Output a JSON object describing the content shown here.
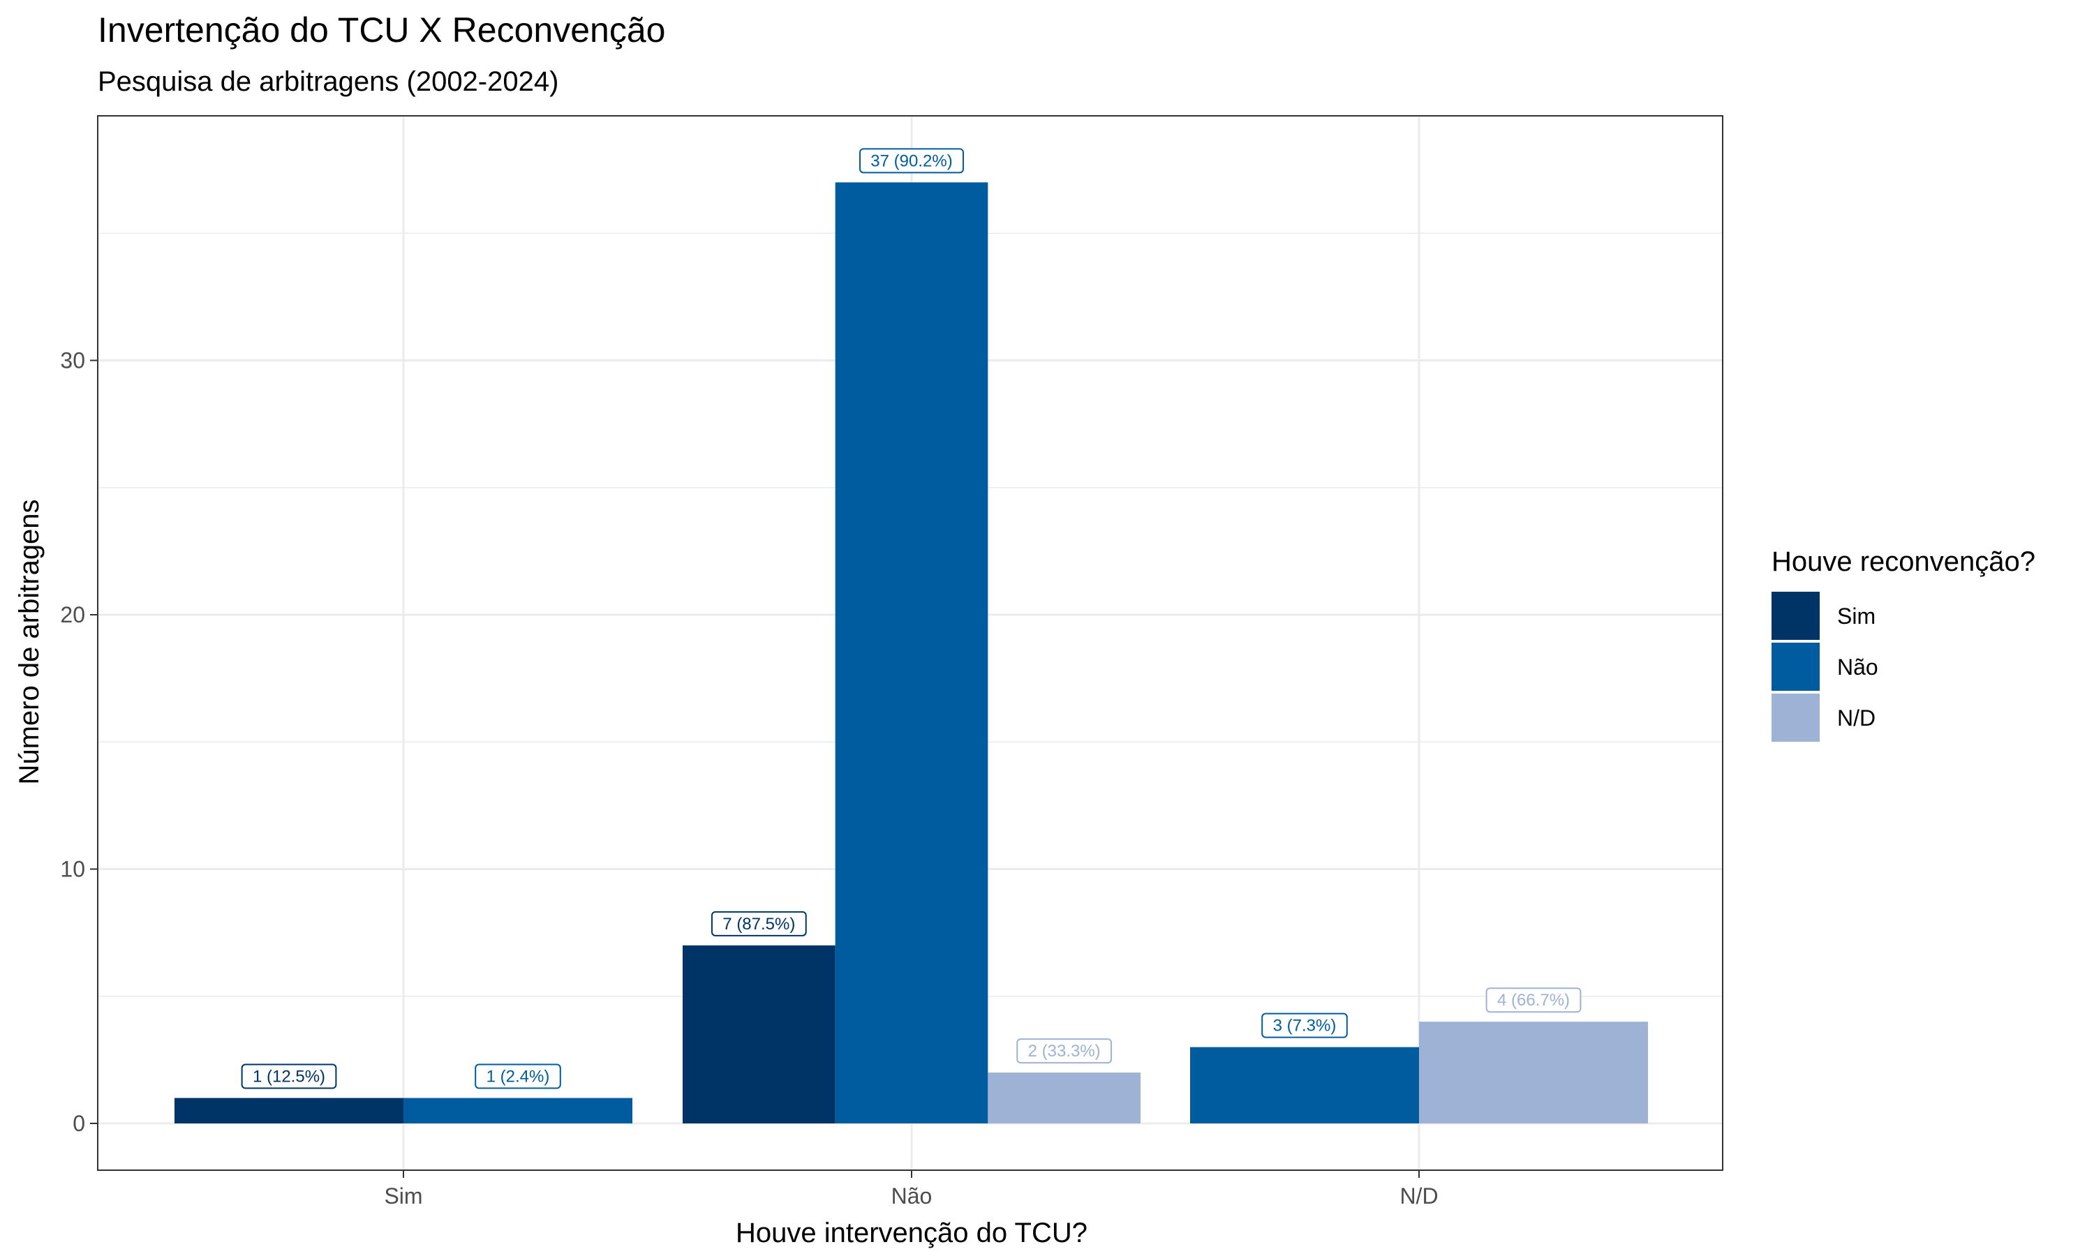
{
  "chart_data": {
    "type": "bar",
    "title": "Invertenção do TCU X Reconvenção",
    "subtitle": "Pesquisa de arbitragens (2002-2024)",
    "xlabel": "Houve intervenção do TCU?",
    "ylabel": "Número de arbitragens",
    "categories": [
      "Sim",
      "Não",
      "N/D"
    ],
    "ylim": [
      0,
      38
    ],
    "yticks": [
      0,
      10,
      20,
      30
    ],
    "grid": true,
    "legend": {
      "title": "Houve reconvenção?",
      "placement": "right",
      "entries": [
        "Sim",
        "Não",
        "N/D"
      ]
    },
    "colors": {
      "Sim": "#003366",
      "Não": "#005b9f",
      "N/D": "#9db2d5"
    },
    "groups": [
      {
        "category": "Sim",
        "bars": [
          {
            "series": "Sim",
            "value": 1,
            "label": "1 (12.5%)"
          },
          {
            "series": "Não",
            "value": 1,
            "label": "1 (2.4%)"
          }
        ]
      },
      {
        "category": "Não",
        "bars": [
          {
            "series": "Sim",
            "value": 7,
            "label": "7 (87.5%)"
          },
          {
            "series": "Não",
            "value": 37,
            "label": "37 (90.2%)"
          },
          {
            "series": "N/D",
            "value": 2,
            "label": "2 (33.3%)"
          }
        ]
      },
      {
        "category": "N/D",
        "bars": [
          {
            "series": "Não",
            "value": 3,
            "label": "3 (7.3%)"
          },
          {
            "series": "N/D",
            "value": 4,
            "label": "4 (66.7%)"
          }
        ]
      }
    ]
  }
}
